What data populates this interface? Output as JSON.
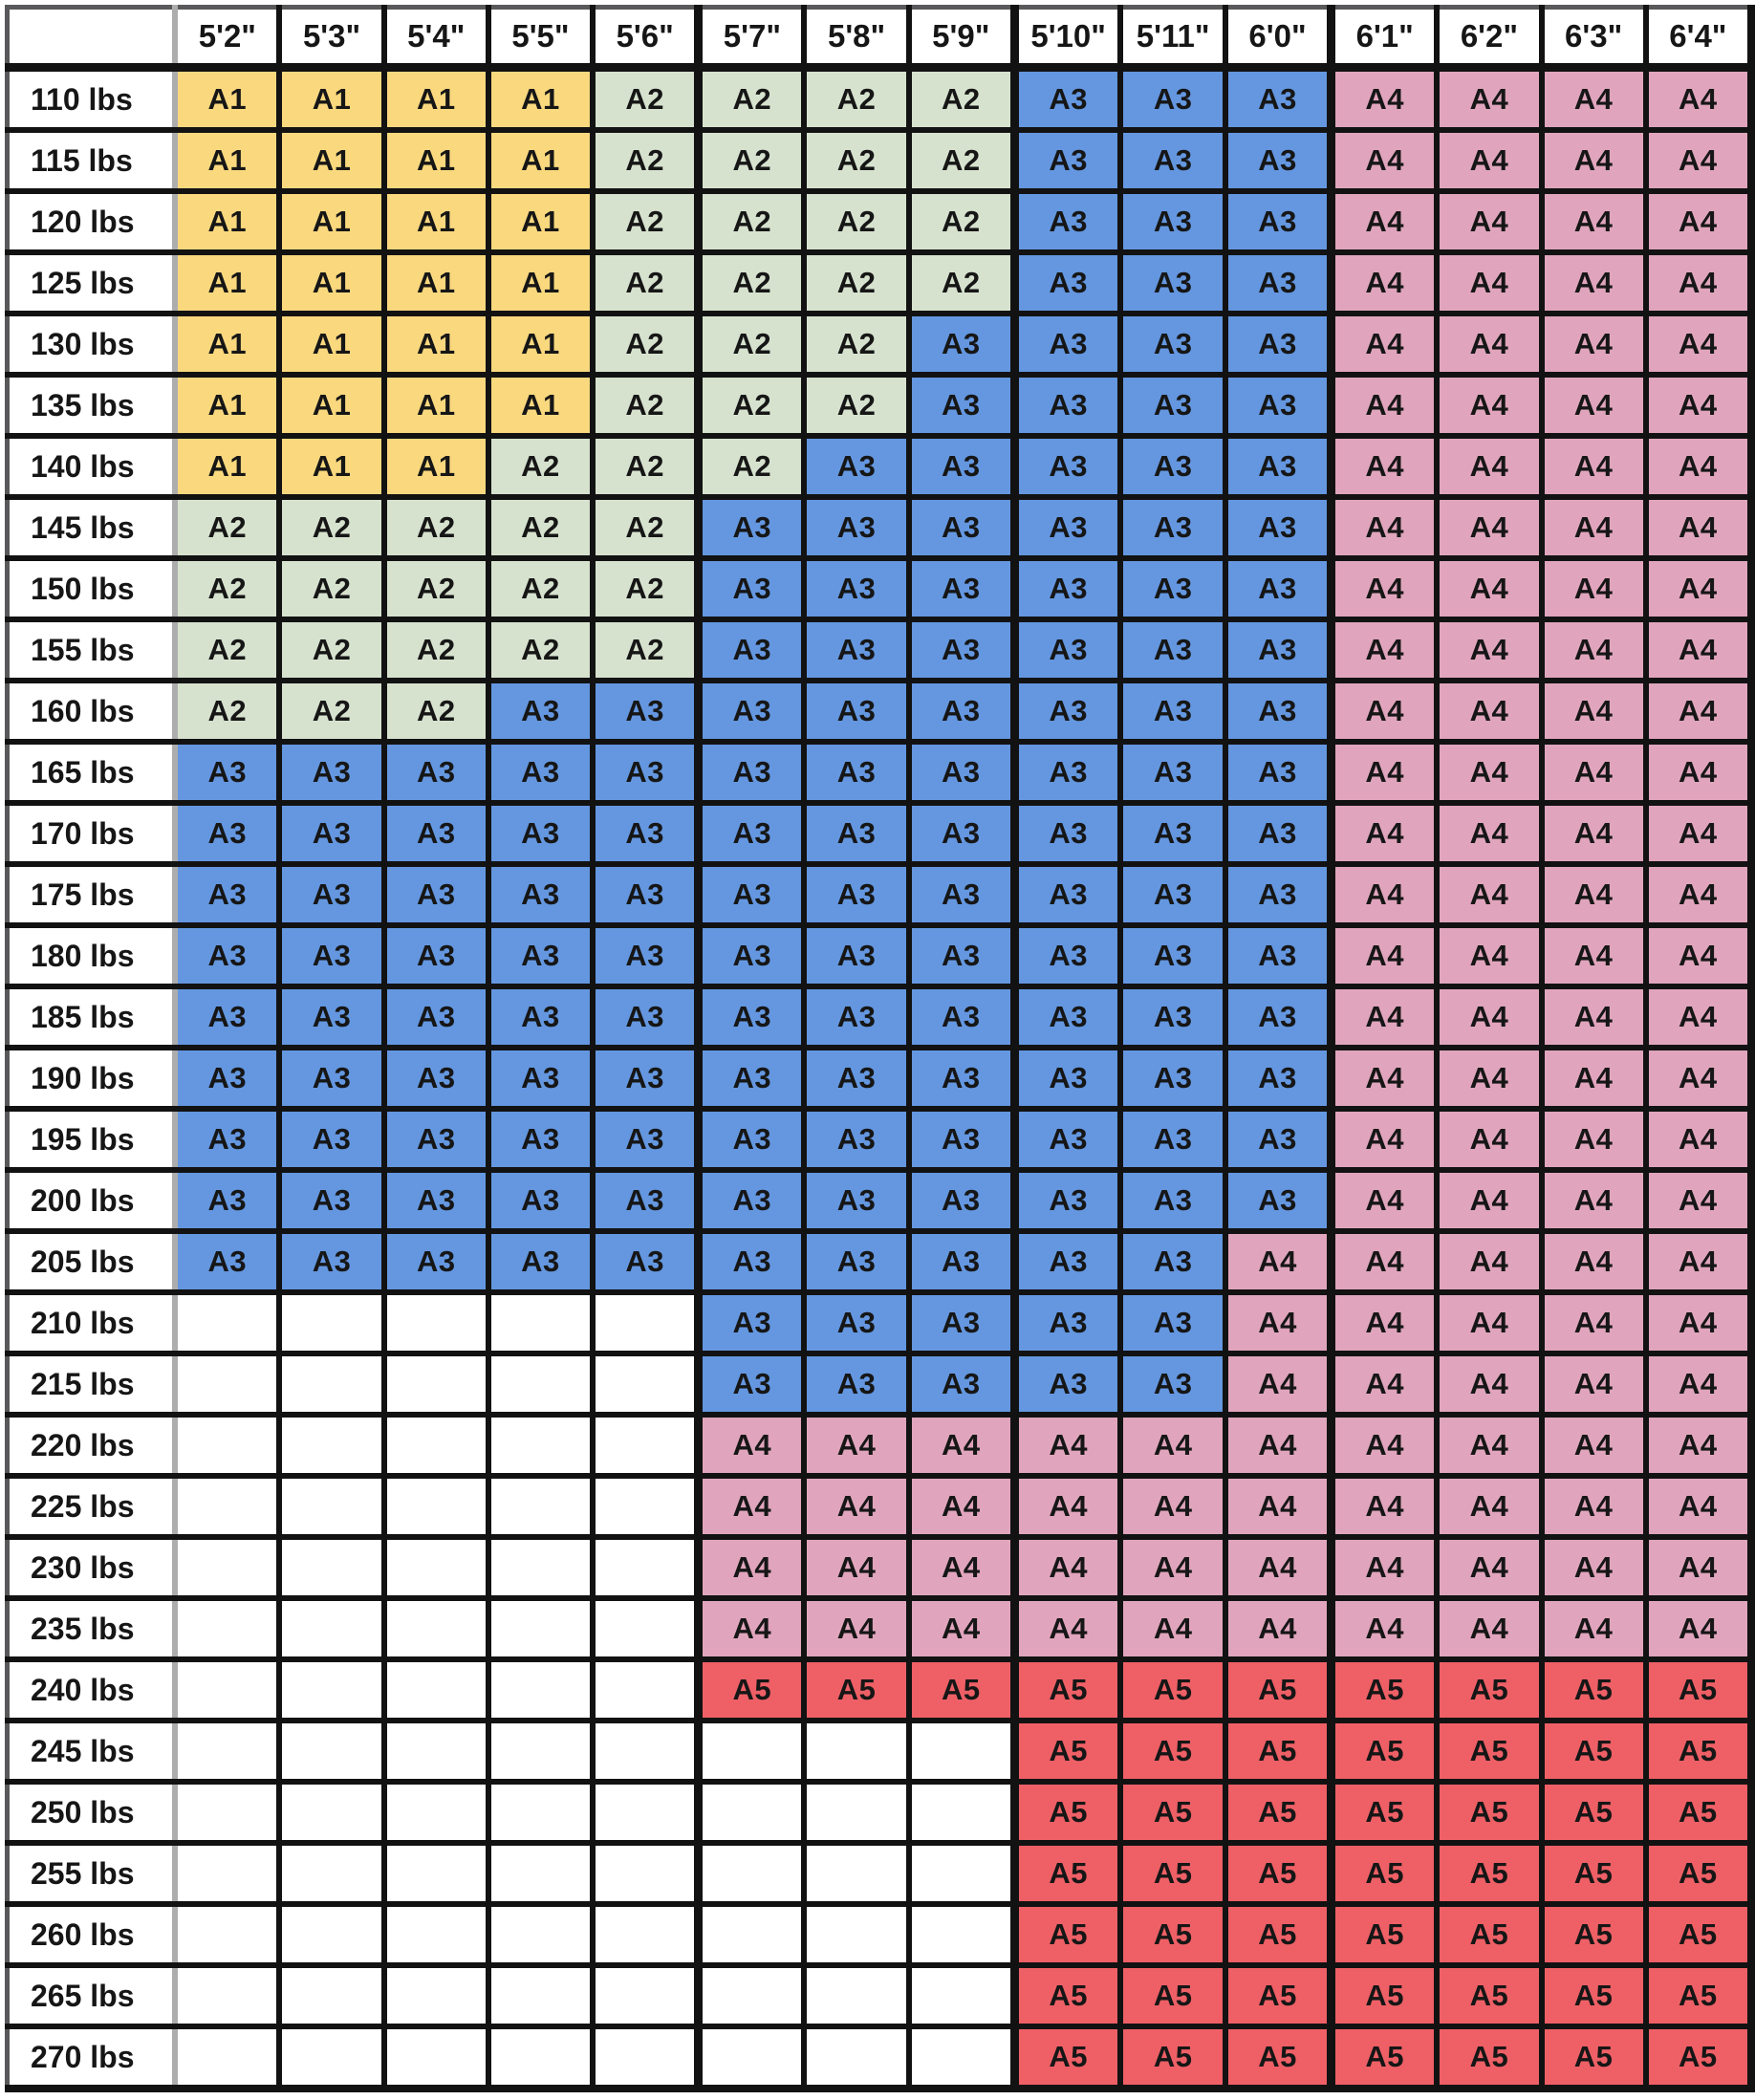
{
  "chart_data": {
    "type": "table",
    "corner_label": "",
    "columns": [
      "5'2\"",
      "5'3\"",
      "5'4\"",
      "5'5\"",
      "5'6\"",
      "5'7\"",
      "5'8\"",
      "5'9\"",
      "5'10\"",
      "5'11\"",
      "6'0\"",
      "6'1\"",
      "6'2\"",
      "6'3\"",
      "6'4\""
    ],
    "group_separator_after_columns": [
      4,
      7,
      10
    ],
    "size_colors": {
      "A1": "#F9D87E",
      "A2": "#D6E2CE",
      "A3": "#6497E0",
      "A4": "#E0A5BC",
      "A5": "#EE6066",
      "empty": "#FFFFFF"
    },
    "rows": [
      {
        "weight": "110 lbs",
        "cells": [
          "A1",
          "A1",
          "A1",
          "A1",
          "A2",
          "A2",
          "A2",
          "A2",
          "A3",
          "A3",
          "A3",
          "A4",
          "A4",
          "A4",
          "A4"
        ]
      },
      {
        "weight": "115 lbs",
        "cells": [
          "A1",
          "A1",
          "A1",
          "A1",
          "A2",
          "A2",
          "A2",
          "A2",
          "A3",
          "A3",
          "A3",
          "A4",
          "A4",
          "A4",
          "A4"
        ]
      },
      {
        "weight": "120 lbs",
        "cells": [
          "A1",
          "A1",
          "A1",
          "A1",
          "A2",
          "A2",
          "A2",
          "A2",
          "A3",
          "A3",
          "A3",
          "A4",
          "A4",
          "A4",
          "A4"
        ]
      },
      {
        "weight": "125 lbs",
        "cells": [
          "A1",
          "A1",
          "A1",
          "A1",
          "A2",
          "A2",
          "A2",
          "A2",
          "A3",
          "A3",
          "A3",
          "A4",
          "A4",
          "A4",
          "A4"
        ]
      },
      {
        "weight": "130 lbs",
        "cells": [
          "A1",
          "A1",
          "A1",
          "A1",
          "A2",
          "A2",
          "A2",
          "A3",
          "A3",
          "A3",
          "A3",
          "A4",
          "A4",
          "A4",
          "A4"
        ]
      },
      {
        "weight": "135 lbs",
        "cells": [
          "A1",
          "A1",
          "A1",
          "A1",
          "A2",
          "A2",
          "A2",
          "A3",
          "A3",
          "A3",
          "A3",
          "A4",
          "A4",
          "A4",
          "A4"
        ]
      },
      {
        "weight": "140 lbs",
        "cells": [
          "A1",
          "A1",
          "A1",
          "A2",
          "A2",
          "A2",
          "A3",
          "A3",
          "A3",
          "A3",
          "A3",
          "A4",
          "A4",
          "A4",
          "A4"
        ]
      },
      {
        "weight": "145 lbs",
        "cells": [
          "A2",
          "A2",
          "A2",
          "A2",
          "A2",
          "A3",
          "A3",
          "A3",
          "A3",
          "A3",
          "A3",
          "A4",
          "A4",
          "A4",
          "A4"
        ]
      },
      {
        "weight": "150 lbs",
        "cells": [
          "A2",
          "A2",
          "A2",
          "A2",
          "A2",
          "A3",
          "A3",
          "A3",
          "A3",
          "A3",
          "A3",
          "A4",
          "A4",
          "A4",
          "A4"
        ]
      },
      {
        "weight": "155 lbs",
        "cells": [
          "A2",
          "A2",
          "A2",
          "A2",
          "A2",
          "A3",
          "A3",
          "A3",
          "A3",
          "A3",
          "A3",
          "A4",
          "A4",
          "A4",
          "A4"
        ]
      },
      {
        "weight": "160 lbs",
        "cells": [
          "A2",
          "A2",
          "A2",
          "A3",
          "A3",
          "A3",
          "A3",
          "A3",
          "A3",
          "A3",
          "A3",
          "A4",
          "A4",
          "A4",
          "A4"
        ]
      },
      {
        "weight": "165 lbs",
        "cells": [
          "A3",
          "A3",
          "A3",
          "A3",
          "A3",
          "A3",
          "A3",
          "A3",
          "A3",
          "A3",
          "A3",
          "A4",
          "A4",
          "A4",
          "A4"
        ]
      },
      {
        "weight": "170 lbs",
        "cells": [
          "A3",
          "A3",
          "A3",
          "A3",
          "A3",
          "A3",
          "A3",
          "A3",
          "A3",
          "A3",
          "A3",
          "A4",
          "A4",
          "A4",
          "A4"
        ]
      },
      {
        "weight": "175 lbs",
        "cells": [
          "A3",
          "A3",
          "A3",
          "A3",
          "A3",
          "A3",
          "A3",
          "A3",
          "A3",
          "A3",
          "A3",
          "A4",
          "A4",
          "A4",
          "A4"
        ]
      },
      {
        "weight": "180 lbs",
        "cells": [
          "A3",
          "A3",
          "A3",
          "A3",
          "A3",
          "A3",
          "A3",
          "A3",
          "A3",
          "A3",
          "A3",
          "A4",
          "A4",
          "A4",
          "A4"
        ]
      },
      {
        "weight": "185 lbs",
        "cells": [
          "A3",
          "A3",
          "A3",
          "A3",
          "A3",
          "A3",
          "A3",
          "A3",
          "A3",
          "A3",
          "A3",
          "A4",
          "A4",
          "A4",
          "A4"
        ]
      },
      {
        "weight": "190 lbs",
        "cells": [
          "A3",
          "A3",
          "A3",
          "A3",
          "A3",
          "A3",
          "A3",
          "A3",
          "A3",
          "A3",
          "A3",
          "A4",
          "A4",
          "A4",
          "A4"
        ]
      },
      {
        "weight": "195 lbs",
        "cells": [
          "A3",
          "A3",
          "A3",
          "A3",
          "A3",
          "A3",
          "A3",
          "A3",
          "A3",
          "A3",
          "A3",
          "A4",
          "A4",
          "A4",
          "A4"
        ]
      },
      {
        "weight": "200 lbs",
        "cells": [
          "A3",
          "A3",
          "A3",
          "A3",
          "A3",
          "A3",
          "A3",
          "A3",
          "A3",
          "A3",
          "A3",
          "A4",
          "A4",
          "A4",
          "A4"
        ]
      },
      {
        "weight": "205 lbs",
        "cells": [
          "A3",
          "A3",
          "A3",
          "A3",
          "A3",
          "A3",
          "A3",
          "A3",
          "A3",
          "A3",
          "A4",
          "A4",
          "A4",
          "A4",
          "A4"
        ]
      },
      {
        "weight": "210 lbs",
        "cells": [
          "",
          "",
          "",
          "",
          "",
          "A3",
          "A3",
          "A3",
          "A3",
          "A3",
          "A4",
          "A4",
          "A4",
          "A4",
          "A4"
        ]
      },
      {
        "weight": "215 lbs",
        "cells": [
          "",
          "",
          "",
          "",
          "",
          "A3",
          "A3",
          "A3",
          "A3",
          "A3",
          "A4",
          "A4",
          "A4",
          "A4",
          "A4"
        ]
      },
      {
        "weight": "220 lbs",
        "cells": [
          "",
          "",
          "",
          "",
          "",
          "A4",
          "A4",
          "A4",
          "A4",
          "A4",
          "A4",
          "A4",
          "A4",
          "A4",
          "A4"
        ]
      },
      {
        "weight": "225 lbs",
        "cells": [
          "",
          "",
          "",
          "",
          "",
          "A4",
          "A4",
          "A4",
          "A4",
          "A4",
          "A4",
          "A4",
          "A4",
          "A4",
          "A4"
        ]
      },
      {
        "weight": "230 lbs",
        "cells": [
          "",
          "",
          "",
          "",
          "",
          "A4",
          "A4",
          "A4",
          "A4",
          "A4",
          "A4",
          "A4",
          "A4",
          "A4",
          "A4"
        ]
      },
      {
        "weight": "235 lbs",
        "cells": [
          "",
          "",
          "",
          "",
          "",
          "A4",
          "A4",
          "A4",
          "A4",
          "A4",
          "A4",
          "A4",
          "A4",
          "A4",
          "A4"
        ]
      },
      {
        "weight": "240 lbs",
        "cells": [
          "",
          "",
          "",
          "",
          "",
          "A5",
          "A5",
          "A5",
          "A5",
          "A5",
          "A5",
          "A5",
          "A5",
          "A5",
          "A5"
        ]
      },
      {
        "weight": "245 lbs",
        "cells": [
          "",
          "",
          "",
          "",
          "",
          "",
          "",
          "",
          "A5",
          "A5",
          "A5",
          "A5",
          "A5",
          "A5",
          "A5"
        ]
      },
      {
        "weight": "250 lbs",
        "cells": [
          "",
          "",
          "",
          "",
          "",
          "",
          "",
          "",
          "A5",
          "A5",
          "A5",
          "A5",
          "A5",
          "A5",
          "A5"
        ]
      },
      {
        "weight": "255 lbs",
        "cells": [
          "",
          "",
          "",
          "",
          "",
          "",
          "",
          "",
          "A5",
          "A5",
          "A5",
          "A5",
          "A5",
          "A5",
          "A5"
        ]
      },
      {
        "weight": "260 lbs",
        "cells": [
          "",
          "",
          "",
          "",
          "",
          "",
          "",
          "",
          "A5",
          "A5",
          "A5",
          "A5",
          "A5",
          "A5",
          "A5"
        ]
      },
      {
        "weight": "265 lbs",
        "cells": [
          "",
          "",
          "",
          "",
          "",
          "",
          "",
          "",
          "A5",
          "A5",
          "A5",
          "A5",
          "A5",
          "A5",
          "A5"
        ]
      },
      {
        "weight": "270 lbs",
        "cells": [
          "",
          "",
          "",
          "",
          "",
          "",
          "",
          "",
          "A5",
          "A5",
          "A5",
          "A5",
          "A5",
          "A5",
          "A5"
        ]
      }
    ]
  }
}
